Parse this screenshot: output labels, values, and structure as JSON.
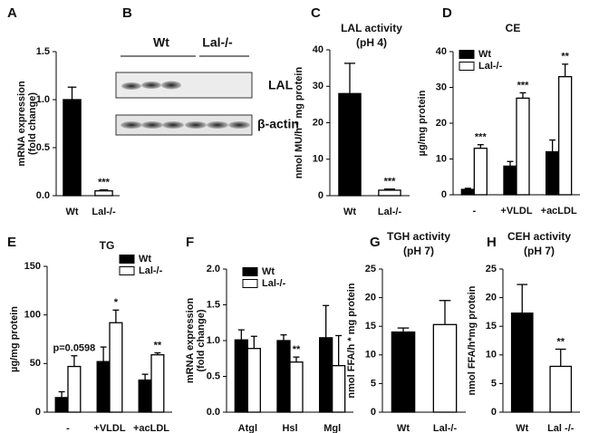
{
  "blot": {
    "label": "B",
    "groups": [
      "Wt",
      "Lal-/-"
    ],
    "bands": [
      "LAL",
      "β-actin"
    ]
  },
  "chart_data": [
    {
      "type": "bar",
      "label": "A",
      "ylabel": [
        "mRNA expression",
        "(fold change)"
      ],
      "categories": [
        "Wt",
        "Lal-/-"
      ],
      "values": [
        1.0,
        0.05
      ],
      "errors": [
        0.13,
        0.01
      ],
      "colors": [
        "#000000",
        "#ffffff"
      ],
      "significance": [
        null,
        "***"
      ],
      "ylim": [
        0,
        1.5
      ],
      "yticks": [
        {
          "value": 0,
          "label": "0.0"
        },
        {
          "value": 0.5,
          "label": "0.5"
        },
        {
          "value": 1,
          "label": "1.0"
        },
        {
          "value": 1.5,
          "label": "1.5"
        }
      ]
    },
    {
      "type": "bar",
      "label": "C",
      "title": [
        "LAL activity",
        "(pH 4)"
      ],
      "ylabel": [
        "nmol MU/h * mg protein"
      ],
      "categories": [
        "Wt",
        "Lal-/-"
      ],
      "values": [
        28,
        1.5
      ],
      "errors": [
        8.3,
        0.3
      ],
      "colors": [
        "#000000",
        "#ffffff"
      ],
      "significance": [
        null,
        "***"
      ],
      "ylim": [
        0,
        40
      ],
      "yticks": [
        0,
        10,
        20,
        30,
        40
      ]
    },
    {
      "type": "grouped_bar",
      "label": "D",
      "title": [
        "CE"
      ],
      "ylabel": [
        "µg/mg protein"
      ],
      "categories": [
        "-",
        "+VLDL",
        "+acLDL"
      ],
      "series": [
        {
          "name": "Wt",
          "color": "#000000",
          "values": [
            1.5,
            8,
            12
          ],
          "errors": [
            0.3,
            1.3,
            3.3
          ]
        },
        {
          "name": "Lal-/-",
          "color": "#ffffff",
          "values": [
            13,
            27,
            33
          ],
          "errors": [
            1,
            1.5,
            3.5
          ],
          "significance": [
            "***",
            "***",
            "**"
          ]
        }
      ],
      "ylim": [
        0,
        40
      ],
      "yticks": [
        0,
        10,
        20,
        30,
        40
      ]
    },
    {
      "type": "grouped_bar",
      "label": "E",
      "title": [
        "TG"
      ],
      "ylabel": [
        "µg/mg protein"
      ],
      "categories": [
        "-",
        "+VLDL",
        "+acLDL"
      ],
      "series": [
        {
          "name": "Wt",
          "color": "#000000",
          "values": [
            15,
            52,
            33
          ],
          "errors": [
            6,
            15,
            6
          ]
        },
        {
          "name": "Lal-/-",
          "color": "#ffffff",
          "values": [
            47,
            92,
            59
          ],
          "errors": [
            11,
            13,
            2
          ],
          "significance": [
            "p=0.0598",
            "*",
            "**"
          ]
        }
      ],
      "ylim": [
        0,
        150
      ],
      "yticks": [
        0,
        50,
        100,
        150
      ]
    },
    {
      "type": "grouped_bar",
      "label": "F",
      "ylabel": [
        "mRNA expression",
        "(fold change)"
      ],
      "categories": [
        "Atgl",
        "Hsl",
        "Mgl"
      ],
      "series": [
        {
          "name": "Wt",
          "color": "#000000",
          "values": [
            1.01,
            1.0,
            1.04
          ],
          "errors": [
            0.14,
            0.08,
            0.45
          ]
        },
        {
          "name": "Lal-/-",
          "color": "#ffffff",
          "values": [
            0.89,
            0.7,
            0.65
          ],
          "errors": [
            0.17,
            0.07,
            0.42
          ],
          "significance": [
            null,
            "**",
            null
          ]
        }
      ],
      "ylim": [
        0,
        2
      ],
      "yticks": [
        {
          "value": 0,
          "label": "0.0"
        },
        {
          "value": 0.5,
          "label": "0.5"
        },
        {
          "value": 1,
          "label": "1.0"
        },
        {
          "value": 1.5,
          "label": "1.5"
        },
        {
          "value": 2,
          "label": "2.0"
        }
      ]
    },
    {
      "type": "bar",
      "label": "G",
      "title": [
        "TGH activity",
        "(pH 7)"
      ],
      "ylabel": [
        "nmol FFA/h * mg protein"
      ],
      "categories": [
        "Wt",
        "Lal-/-"
      ],
      "values": [
        14,
        15.3
      ],
      "errors": [
        0.7,
        4.2
      ],
      "colors": [
        "#000000",
        "#ffffff"
      ],
      "ylim": [
        0,
        25
      ],
      "yticks": [
        0,
        5,
        10,
        15,
        20,
        25
      ]
    },
    {
      "type": "bar",
      "label": "H",
      "title": [
        "CEH activity",
        "(pH 7)"
      ],
      "ylabel": [
        "nmol FFA/h*mg protein"
      ],
      "categories": [
        "Wt",
        "Lal -/-"
      ],
      "values": [
        17.3,
        8
      ],
      "errors": [
        5,
        3
      ],
      "colors": [
        "#000000",
        "#ffffff"
      ],
      "significance": [
        null,
        "**"
      ],
      "ylim": [
        0,
        25
      ],
      "yticks": [
        0,
        5,
        10,
        15,
        20,
        25
      ]
    }
  ]
}
